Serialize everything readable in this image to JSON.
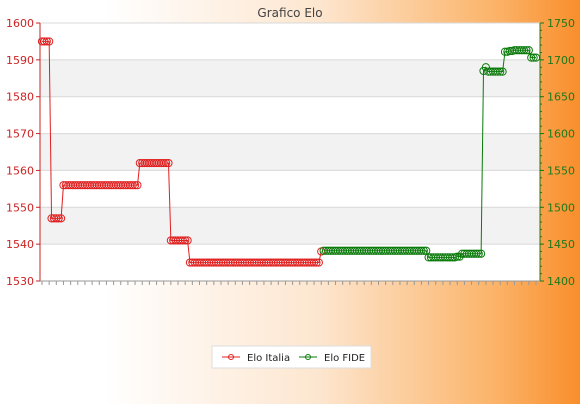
{
  "chart_data": {
    "type": "line",
    "title": "Grafico Elo",
    "xlabel": "",
    "ylabel": "",
    "y_left": {
      "range": [
        1530,
        1600
      ],
      "ticks": [
        1530,
        1540,
        1550,
        1560,
        1570,
        1580,
        1590,
        1600
      ]
    },
    "y_right": {
      "range": [
        1400,
        1750
      ],
      "ticks": [
        1400,
        1450,
        1500,
        1550,
        1600,
        1650,
        1700,
        1750
      ]
    },
    "grid": true,
    "legend_position": "bottom-center",
    "x_tick_labels_note": "illegible overlapping rotated date labels",
    "series": [
      {
        "name": "Elo Italia",
        "axis": "left",
        "color": "#e02020",
        "segments": [
          {
            "value": 1595,
            "count": 4
          },
          {
            "value": 1547,
            "count": 5
          },
          {
            "value": 1556,
            "count": 32
          },
          {
            "value": 1562,
            "count": 13
          },
          {
            "value": 1541,
            "count": 8
          },
          {
            "value": 1535,
            "count": 55
          },
          {
            "value": 1538,
            "count": 1
          }
        ]
      },
      {
        "name": "Elo FIDE",
        "axis": "right",
        "color": "#0a7a0a",
        "segments": [
          {
            "value": 1441,
            "count": 44
          },
          {
            "value": 1432,
            "count": 12
          },
          {
            "value": 1433,
            "count": 2
          },
          {
            "value": 1437,
            "count": 9
          },
          {
            "value": 1685,
            "count": 1
          },
          {
            "value": 1690,
            "count": 1
          },
          {
            "value": 1684,
            "count": 7
          },
          {
            "value": 1711,
            "count": 2
          },
          {
            "value": 1712,
            "count": 2
          },
          {
            "value": 1713,
            "count": 7
          },
          {
            "value": 1703,
            "count": 3
          }
        ]
      }
    ]
  }
}
